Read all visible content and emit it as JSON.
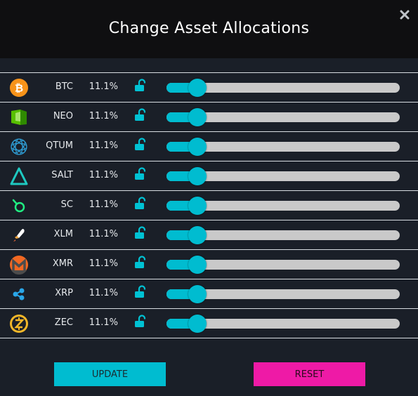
{
  "dialog": {
    "title": "Change Asset Allocations",
    "close_icon": "close-icon"
  },
  "colors": {
    "accent": "#00bcd0",
    "reset": "#ee1aa6",
    "track": "#c9c9c9",
    "header_bg": "#0f0f11",
    "body_bg": "#1a1f28"
  },
  "assets": [
    {
      "symbol": "BTC",
      "percent": "11.1%",
      "level": 0.111,
      "icon": "bitcoin-icon",
      "locked": false
    },
    {
      "symbol": "NEO",
      "percent": "11.1%",
      "level": 0.111,
      "icon": "neo-icon",
      "locked": false
    },
    {
      "symbol": "QTUM",
      "percent": "11.1%",
      "level": 0.111,
      "icon": "qtum-icon",
      "locked": false
    },
    {
      "symbol": "SALT",
      "percent": "11.1%",
      "level": 0.111,
      "icon": "salt-icon",
      "locked": false
    },
    {
      "symbol": "SC",
      "percent": "11.1%",
      "level": 0.111,
      "icon": "siacoin-icon",
      "locked": false
    },
    {
      "symbol": "XLM",
      "percent": "11.1%",
      "level": 0.111,
      "icon": "stellar-icon",
      "locked": false
    },
    {
      "symbol": "XMR",
      "percent": "11.1%",
      "level": 0.111,
      "icon": "monero-icon",
      "locked": false
    },
    {
      "symbol": "XRP",
      "percent": "11.1%",
      "level": 0.111,
      "icon": "ripple-icon",
      "locked": false
    },
    {
      "symbol": "ZEC",
      "percent": "11.1%",
      "level": 0.111,
      "icon": "zcash-icon",
      "locked": false
    }
  ],
  "buttons": {
    "update_label": "UPDATE",
    "reset_label": "RESET"
  }
}
